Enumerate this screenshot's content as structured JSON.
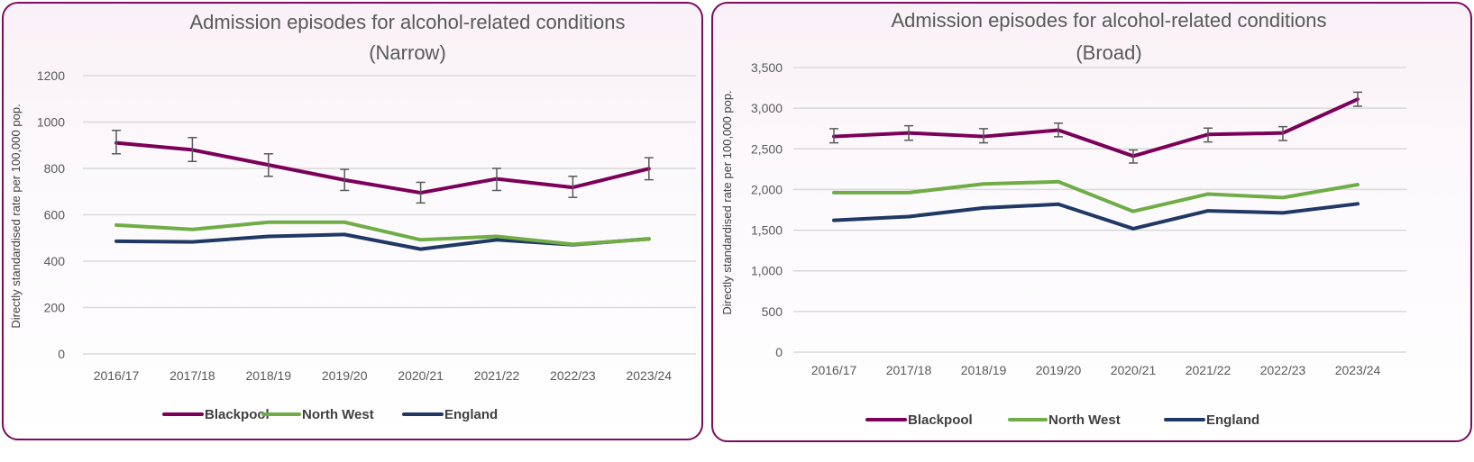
{
  "chart_data": [
    {
      "type": "line",
      "title": [
        "Admission episodes for alcohol-related conditions",
        "(Narrow)"
      ],
      "xlabel": "",
      "ylabel": "Directly standardised rate per 100,000 pop.",
      "categories": [
        "2016/17",
        "2017/18",
        "2018/19",
        "2019/20",
        "2020/21",
        "2021/22",
        "2022/23",
        "2023/24"
      ],
      "ylim": [
        0,
        1200
      ],
      "yticks": [
        0,
        200,
        400,
        600,
        800,
        1000,
        1200
      ],
      "ytick_labels": [
        "0",
        "200",
        "400",
        "600",
        "800",
        "1000",
        "1200"
      ],
      "grid": true,
      "legend": "bottom",
      "series": [
        {
          "name": "Blackpool",
          "color": "#7b0059",
          "values": [
            910,
            880,
            815,
            750,
            695,
            755,
            718,
            799
          ],
          "error_low": [
            863,
            830,
            766,
            705,
            651,
            705,
            675,
            751
          ],
          "error_high": [
            964,
            933,
            863,
            796,
            740,
            800,
            766,
            846
          ]
        },
        {
          "name": "North West",
          "color": "#70ad47",
          "values": [
            556,
            537,
            568,
            568,
            492,
            507,
            473,
            495
          ]
        },
        {
          "name": "England",
          "color": "#1f3864",
          "values": [
            486,
            483,
            507,
            515,
            452,
            492,
            471,
            496
          ]
        }
      ]
    },
    {
      "type": "line",
      "title": [
        "Admission episodes for alcohol-related conditions",
        "(Broad)"
      ],
      "xlabel": "",
      "ylabel": "Directly standardised rate per 100,000 pop.",
      "categories": [
        "2016/17",
        "2017/18",
        "2018/19",
        "2019/20",
        "2020/21",
        "2021/22",
        "2022/23",
        "2023/24"
      ],
      "ylim": [
        0,
        3500
      ],
      "yticks": [
        0,
        500,
        1000,
        1500,
        2000,
        2500,
        3000,
        3500
      ],
      "ytick_labels": [
        "0",
        "500",
        "1,000",
        "1,500",
        "2,000",
        "2,500",
        "3,000",
        "3,500"
      ],
      "grid": true,
      "legend": "bottom",
      "series": [
        {
          "name": "Blackpool",
          "color": "#7b0059",
          "values": [
            2652,
            2695,
            2652,
            2730,
            2411,
            2677,
            2695,
            3110
          ],
          "error_low": [
            2574,
            2606,
            2574,
            2649,
            2326,
            2585,
            2603,
            3024
          ],
          "error_high": [
            2748,
            2784,
            2748,
            2816,
            2486,
            2755,
            2773,
            3197
          ]
        },
        {
          "name": "North West",
          "color": "#70ad47",
          "values": [
            1962,
            1962,
            2068,
            2096,
            1731,
            1944,
            1901,
            2060
          ]
        },
        {
          "name": "England",
          "color": "#1f3864",
          "values": [
            1621,
            1667,
            1773,
            1819,
            1518,
            1738,
            1713,
            1824
          ]
        }
      ]
    }
  ]
}
